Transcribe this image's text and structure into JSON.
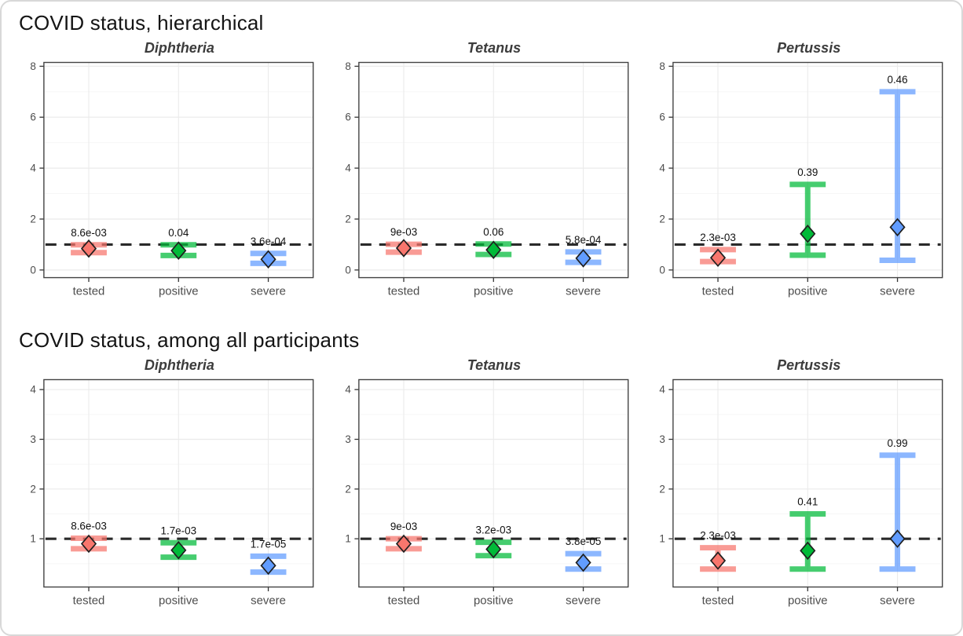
{
  "style": {
    "category_colors": {
      "tested": "#F8766D",
      "positive": "#00BA38",
      "severe": "#619CFF"
    },
    "marker_outline": "#1f1f1f",
    "reference_line_color": "#2a2a2a",
    "grid_major": "#ebebeb",
    "grid_minor": "#f5f5f5",
    "panel_border": "#434343",
    "tick_color": "#333333",
    "tick_label_color": "#4d4d4d",
    "p_label_color": "#111111",
    "page_border": "#d8d8d8"
  },
  "chart_data": [
    {
      "type": "scatter",
      "subtype": "forest-errorbar",
      "section_title": "COVID status, hierarchical",
      "categories": [
        "tested",
        "positive",
        "severe"
      ],
      "reference_line_y": 1,
      "ylim": [
        -0.3,
        8.15
      ],
      "yticks": [
        0,
        2,
        4,
        6,
        8
      ],
      "yticks_minor": [
        1,
        3,
        5,
        7
      ],
      "grid": true,
      "legend": "none",
      "facets": [
        {
          "title": "Diphtheria",
          "points": [
            {
              "category": "tested",
              "estimate": 0.84,
              "ci_low": 0.68,
              "ci_high": 0.99,
              "p_label": "8.6e-03"
            },
            {
              "category": "positive",
              "estimate": 0.76,
              "ci_low": 0.57,
              "ci_high": 0.99,
              "p_label": "0.04"
            },
            {
              "category": "severe",
              "estimate": 0.42,
              "ci_low": 0.26,
              "ci_high": 0.65,
              "p_label": "3.6e-04"
            }
          ]
        },
        {
          "title": "Tetanus",
          "points": [
            {
              "category": "tested",
              "estimate": 0.86,
              "ci_low": 0.7,
              "ci_high": 1.01,
              "p_label": "9e-03"
            },
            {
              "category": "positive",
              "estimate": 0.79,
              "ci_low": 0.61,
              "ci_high": 1.02,
              "p_label": "0.06"
            },
            {
              "category": "severe",
              "estimate": 0.46,
              "ci_low": 0.3,
              "ci_high": 0.71,
              "p_label": "5.8e-04"
            }
          ]
        },
        {
          "title": "Pertussis",
          "points": [
            {
              "category": "tested",
              "estimate": 0.48,
              "ci_low": 0.33,
              "ci_high": 0.8,
              "p_label": "2.3e-03"
            },
            {
              "category": "positive",
              "estimate": 1.42,
              "ci_low": 0.58,
              "ci_high": 3.36,
              "p_label": "0.39"
            },
            {
              "category": "severe",
              "estimate": 1.68,
              "ci_low": 0.38,
              "ci_high": 7.0,
              "p_label": "0.46"
            }
          ]
        }
      ]
    },
    {
      "type": "scatter",
      "subtype": "forest-errorbar",
      "section_title": "COVID status, among all participants",
      "categories": [
        "tested",
        "positive",
        "severe"
      ],
      "reference_line_y": 1,
      "ylim": [
        0.03,
        4.2
      ],
      "yticks": [
        1,
        2,
        3,
        4
      ],
      "yticks_minor": [
        0.5,
        1.5,
        2.5,
        3.5
      ],
      "grid": true,
      "legend": "none",
      "facets": [
        {
          "title": "Diphtheria",
          "points": [
            {
              "category": "tested",
              "estimate": 0.9,
              "ci_low": 0.8,
              "ci_high": 1.01,
              "p_label": "8.6e-03"
            },
            {
              "category": "positive",
              "estimate": 0.77,
              "ci_low": 0.63,
              "ci_high": 0.92,
              "p_label": "1.7e-03"
            },
            {
              "category": "severe",
              "estimate": 0.46,
              "ci_low": 0.33,
              "ci_high": 0.65,
              "p_label": "1.7e-05"
            }
          ]
        },
        {
          "title": "Tetanus",
          "points": [
            {
              "category": "tested",
              "estimate": 0.9,
              "ci_low": 0.8,
              "ci_high": 1.0,
              "p_label": "9e-03"
            },
            {
              "category": "positive",
              "estimate": 0.79,
              "ci_low": 0.66,
              "ci_high": 0.93,
              "p_label": "3.2e-03"
            },
            {
              "category": "severe",
              "estimate": 0.52,
              "ci_low": 0.39,
              "ci_high": 0.7,
              "p_label": "3.8e-05"
            }
          ]
        },
        {
          "title": "Pertussis",
          "points": [
            {
              "category": "tested",
              "estimate": 0.56,
              "ci_low": 0.39,
              "ci_high": 0.82,
              "p_label": "2.3e-03"
            },
            {
              "category": "positive",
              "estimate": 0.76,
              "ci_low": 0.39,
              "ci_high": 1.5,
              "p_label": "0.41"
            },
            {
              "category": "severe",
              "estimate": 1.0,
              "ci_low": 0.39,
              "ci_high": 2.68,
              "p_label": "0.99"
            }
          ]
        }
      ]
    }
  ]
}
